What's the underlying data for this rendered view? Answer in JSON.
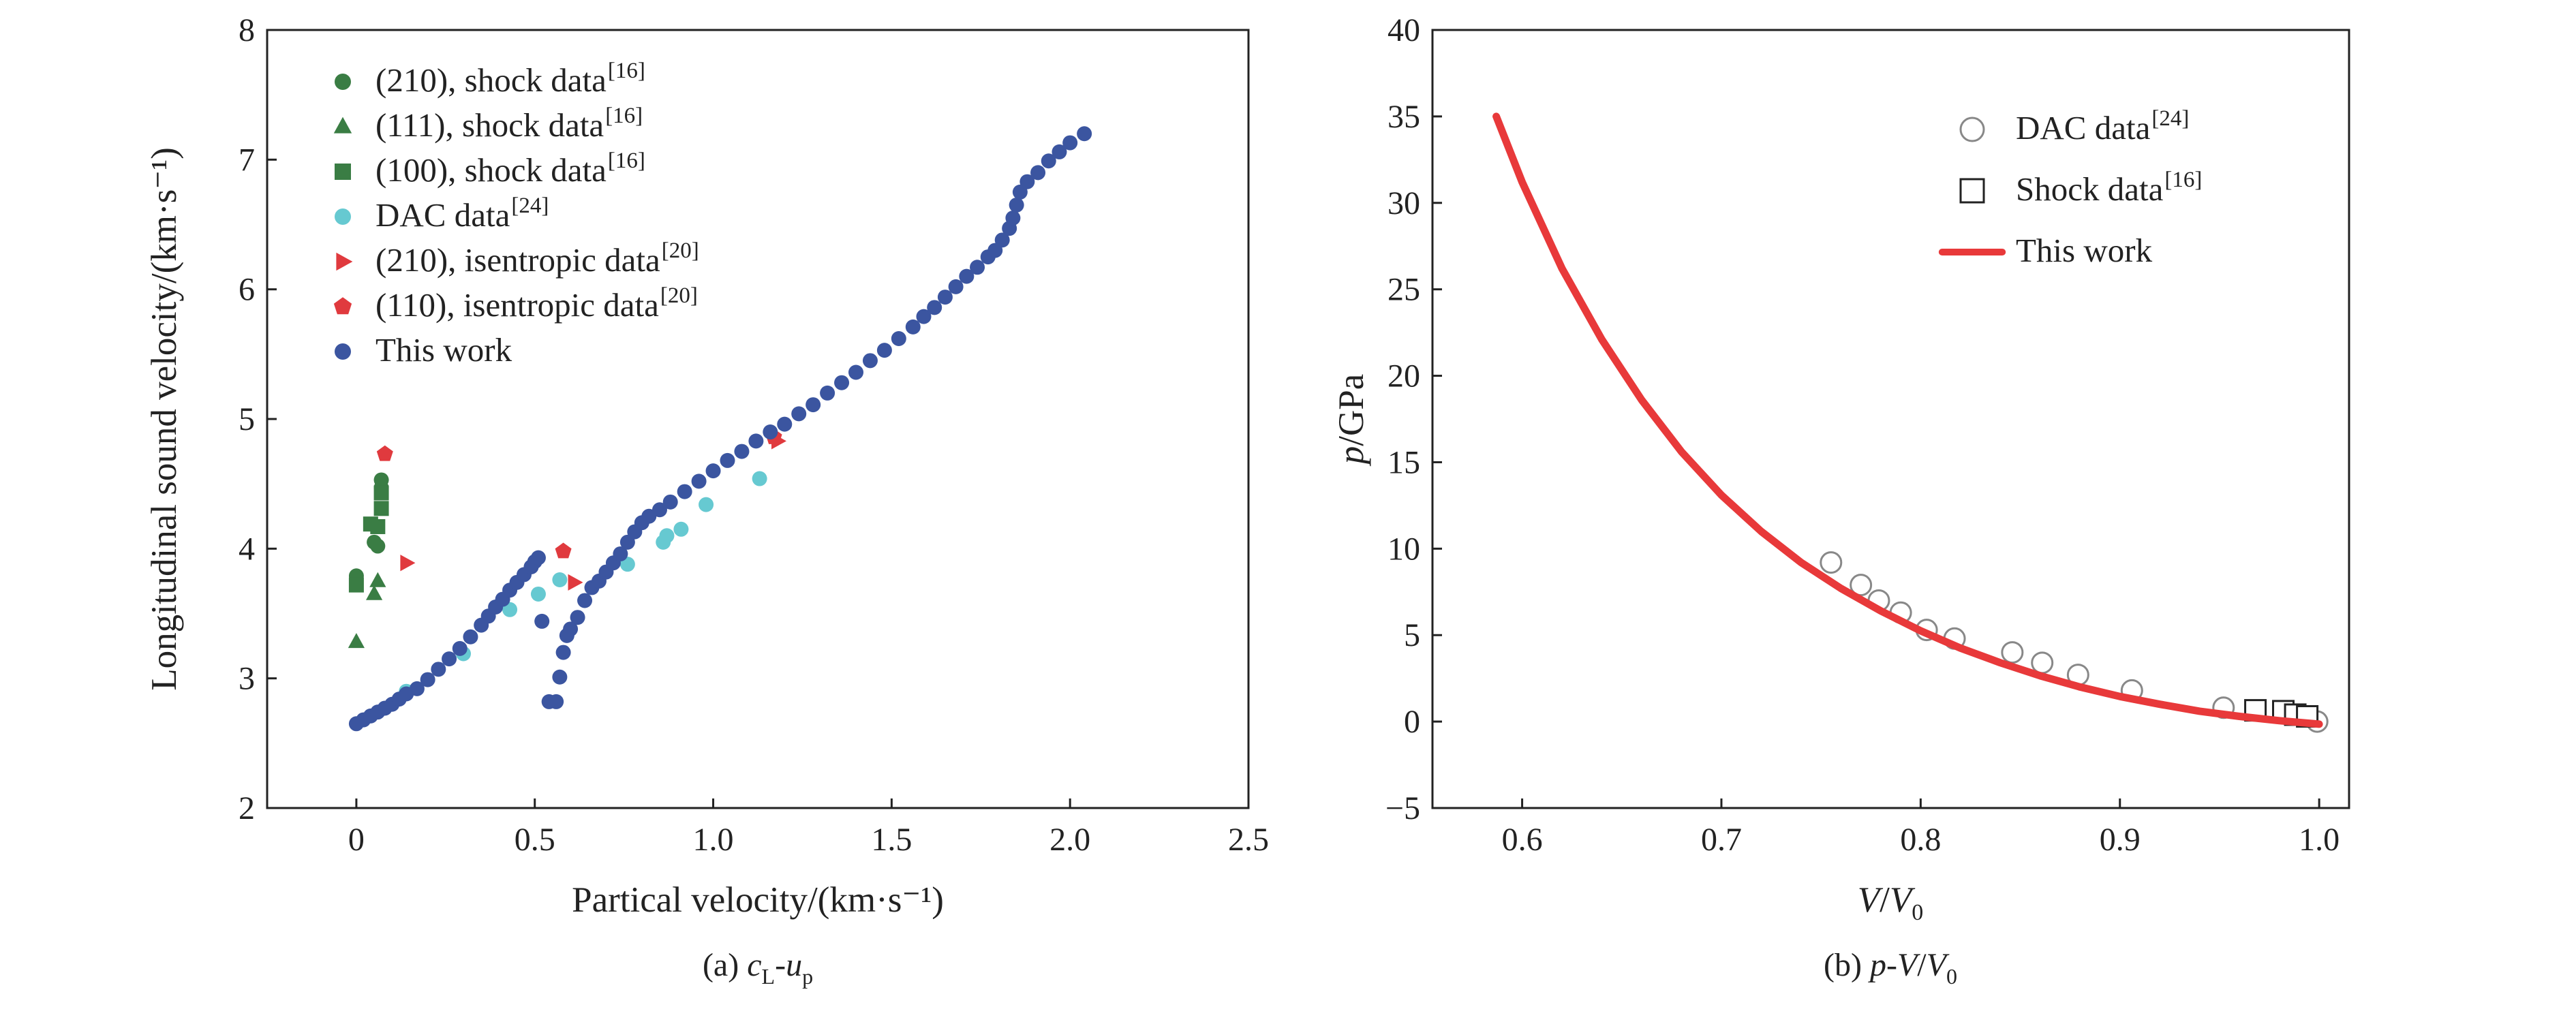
{
  "chart_data": [
    {
      "type": "scatter",
      "panel": "a",
      "caption": "(a) c_L-u_p",
      "xlabel": "Partical velocity/(km·s⁻¹)",
      "ylabel": "Longitudinal sound velocity/(km·s⁻¹)",
      "xlim": [
        -0.25,
        2.5
      ],
      "ylim": [
        2,
        8
      ],
      "xticks": [
        0,
        0.5,
        1.0,
        1.5,
        2.0,
        2.5
      ],
      "xtick_labels": [
        "0",
        "0.5",
        "1.0",
        "1.5",
        "2.0",
        "2.5"
      ],
      "yticks": [
        2,
        3,
        4,
        5,
        6,
        7,
        8
      ],
      "ytick_labels": [
        "2",
        "3",
        "4",
        "5",
        "6",
        "7",
        "8"
      ],
      "legend_position": "top-left",
      "series": [
        {
          "name": "(210), shock data",
          "ref": "[16]",
          "marker": "circle",
          "color": "#3a7d44",
          "points": [
            [
              0.0,
              3.79
            ],
            [
              0.05,
              4.05
            ],
            [
              0.06,
              4.02
            ],
            [
              0.07,
              4.47
            ],
            [
              0.07,
              4.53
            ]
          ]
        },
        {
          "name": "(111), shock data",
          "ref": "[16]",
          "marker": "triangle",
          "color": "#3a7d44",
          "points": [
            [
              0.0,
              3.28
            ],
            [
              0.05,
              3.65
            ],
            [
              0.06,
              3.75
            ]
          ]
        },
        {
          "name": "(100), shock data",
          "ref": "[16]",
          "marker": "square",
          "color": "#3a7d44",
          "points": [
            [
              0.0,
              3.72
            ],
            [
              0.04,
              4.19
            ],
            [
              0.06,
              4.17
            ],
            [
              0.07,
              4.31
            ],
            [
              0.07,
              4.43
            ]
          ]
        },
        {
          "name": "DAC data",
          "ref": "[24]",
          "marker": "circle",
          "color": "#66c9d1",
          "points": [
            [
              0.14,
              2.9
            ],
            [
              0.3,
              3.19
            ],
            [
              0.43,
              3.53
            ],
            [
              0.51,
              3.65
            ],
            [
              0.57,
              3.76
            ],
            [
              0.76,
              3.88
            ],
            [
              0.86,
              4.05
            ],
            [
              0.87,
              4.1
            ],
            [
              0.91,
              4.15
            ],
            [
              0.98,
              4.34
            ],
            [
              1.13,
              4.54
            ]
          ]
        },
        {
          "name": "(210), isentropic data",
          "ref": "[20]",
          "marker": "triangle-right",
          "color": "#e03a3e",
          "points": [
            [
              0.14,
              3.89
            ],
            [
              0.61,
              3.74
            ],
            [
              1.18,
              4.83
            ]
          ]
        },
        {
          "name": "(110), isentropic data",
          "ref": "[20]",
          "marker": "pentagon",
          "color": "#e03a3e",
          "points": [
            [
              0.08,
              4.73
            ],
            [
              0.58,
              3.98
            ],
            [
              1.17,
              4.86
            ]
          ]
        },
        {
          "name": "This work",
          "ref": "",
          "marker": "circle",
          "color": "#3b55a0",
          "points": [
            [
              0.0,
              2.65
            ],
            [
              0.02,
              2.68
            ],
            [
              0.04,
              2.71
            ],
            [
              0.06,
              2.74
            ],
            [
              0.08,
              2.77
            ],
            [
              0.1,
              2.8
            ],
            [
              0.12,
              2.84
            ],
            [
              0.14,
              2.88
            ],
            [
              0.17,
              2.92
            ],
            [
              0.2,
              2.99
            ],
            [
              0.23,
              3.07
            ],
            [
              0.26,
              3.15
            ],
            [
              0.29,
              3.23
            ],
            [
              0.32,
              3.32
            ],
            [
              0.35,
              3.41
            ],
            [
              0.37,
              3.48
            ],
            [
              0.39,
              3.55
            ],
            [
              0.41,
              3.61
            ],
            [
              0.43,
              3.68
            ],
            [
              0.45,
              3.74
            ],
            [
              0.47,
              3.8
            ],
            [
              0.49,
              3.86
            ],
            [
              0.5,
              3.9
            ],
            [
              0.51,
              3.93
            ],
            [
              0.52,
              3.44
            ],
            [
              0.54,
              2.82
            ],
            [
              0.56,
              2.82
            ],
            [
              0.57,
              3.01
            ],
            [
              0.58,
              3.2
            ],
            [
              0.59,
              3.33
            ],
            [
              0.6,
              3.38
            ],
            [
              0.62,
              3.47
            ],
            [
              0.64,
              3.6
            ],
            [
              0.66,
              3.7
            ],
            [
              0.68,
              3.75
            ],
            [
              0.7,
              3.82
            ],
            [
              0.72,
              3.89
            ],
            [
              0.74,
              3.96
            ],
            [
              0.76,
              4.05
            ],
            [
              0.78,
              4.13
            ],
            [
              0.8,
              4.2
            ],
            [
              0.82,
              4.25
            ],
            [
              0.85,
              4.3
            ],
            [
              0.88,
              4.36
            ],
            [
              0.92,
              4.44
            ],
            [
              0.96,
              4.52
            ],
            [
              1.0,
              4.6
            ],
            [
              1.04,
              4.68
            ],
            [
              1.08,
              4.75
            ],
            [
              1.12,
              4.83
            ],
            [
              1.16,
              4.9
            ],
            [
              1.2,
              4.96
            ],
            [
              1.24,
              5.04
            ],
            [
              1.28,
              5.11
            ],
            [
              1.32,
              5.2
            ],
            [
              1.36,
              5.28
            ],
            [
              1.4,
              5.36
            ],
            [
              1.44,
              5.45
            ],
            [
              1.48,
              5.53
            ],
            [
              1.52,
              5.62
            ],
            [
              1.56,
              5.71
            ],
            [
              1.59,
              5.79
            ],
            [
              1.62,
              5.86
            ],
            [
              1.65,
              5.94
            ],
            [
              1.68,
              6.02
            ],
            [
              1.71,
              6.1
            ],
            [
              1.74,
              6.17
            ],
            [
              1.77,
              6.25
            ],
            [
              1.79,
              6.3
            ],
            [
              1.81,
              6.38
            ],
            [
              1.83,
              6.47
            ],
            [
              1.84,
              6.55
            ],
            [
              1.85,
              6.65
            ],
            [
              1.86,
              6.75
            ],
            [
              1.88,
              6.83
            ],
            [
              1.91,
              6.9
            ],
            [
              1.94,
              6.99
            ],
            [
              1.97,
              7.06
            ],
            [
              2.0,
              7.13
            ],
            [
              2.04,
              7.2
            ]
          ]
        }
      ]
    },
    {
      "type": "line+scatter",
      "panel": "b",
      "caption": "(b) p-V/V_0",
      "xlabel": "V/V_0",
      "ylabel": "p/GPa",
      "xlim": [
        0.555,
        1.015
      ],
      "ylim": [
        -5,
        40
      ],
      "xticks": [
        0.6,
        0.7,
        0.8,
        0.9,
        1.0
      ],
      "xtick_labels": [
        "0.6",
        "0.7",
        "0.8",
        "0.9",
        "1.0"
      ],
      "yticks": [
        -5,
        0,
        5,
        10,
        15,
        20,
        25,
        30,
        35,
        40
      ],
      "ytick_labels": [
        "−5",
        "0",
        "5",
        "10",
        "15",
        "20",
        "25",
        "30",
        "35",
        "40"
      ],
      "legend_position": "top-right",
      "series": [
        {
          "name": "DAC data",
          "ref": "[24]",
          "marker": "open-circle",
          "color": "#888888",
          "points": [
            [
              0.755,
              9.2
            ],
            [
              0.77,
              7.9
            ],
            [
              0.779,
              7.0
            ],
            [
              0.79,
              6.3
            ],
            [
              0.803,
              5.3
            ],
            [
              0.817,
              4.8
            ],
            [
              0.846,
              4.0
            ],
            [
              0.861,
              3.4
            ],
            [
              0.879,
              2.7
            ],
            [
              0.906,
              1.8
            ],
            [
              0.952,
              0.8
            ],
            [
              0.999,
              0.0
            ]
          ]
        },
        {
          "name": "Shock data",
          "ref": "[16]",
          "marker": "open-square",
          "color": "#222222",
          "points": [
            [
              0.968,
              0.65
            ],
            [
              0.982,
              0.6
            ],
            [
              0.988,
              0.4
            ],
            [
              0.994,
              0.3
            ]
          ]
        },
        {
          "name": "This work",
          "ref": "",
          "marker": "line",
          "color": "#e8393a",
          "points": [
            [
              0.587,
              35.0
            ],
            [
              0.6,
              31.2
            ],
            [
              0.62,
              26.2
            ],
            [
              0.64,
              22.1
            ],
            [
              0.66,
              18.6
            ],
            [
              0.68,
              15.6
            ],
            [
              0.7,
              13.1
            ],
            [
              0.72,
              11.0
            ],
            [
              0.74,
              9.2
            ],
            [
              0.76,
              7.7
            ],
            [
              0.78,
              6.4
            ],
            [
              0.8,
              5.25
            ],
            [
              0.82,
              4.25
            ],
            [
              0.84,
              3.4
            ],
            [
              0.86,
              2.65
            ],
            [
              0.88,
              2.0
            ],
            [
              0.9,
              1.45
            ],
            [
              0.92,
              1.0
            ],
            [
              0.94,
              0.6
            ],
            [
              0.96,
              0.3
            ],
            [
              0.98,
              0.05
            ],
            [
              1.0,
              -0.15
            ]
          ]
        }
      ]
    }
  ]
}
